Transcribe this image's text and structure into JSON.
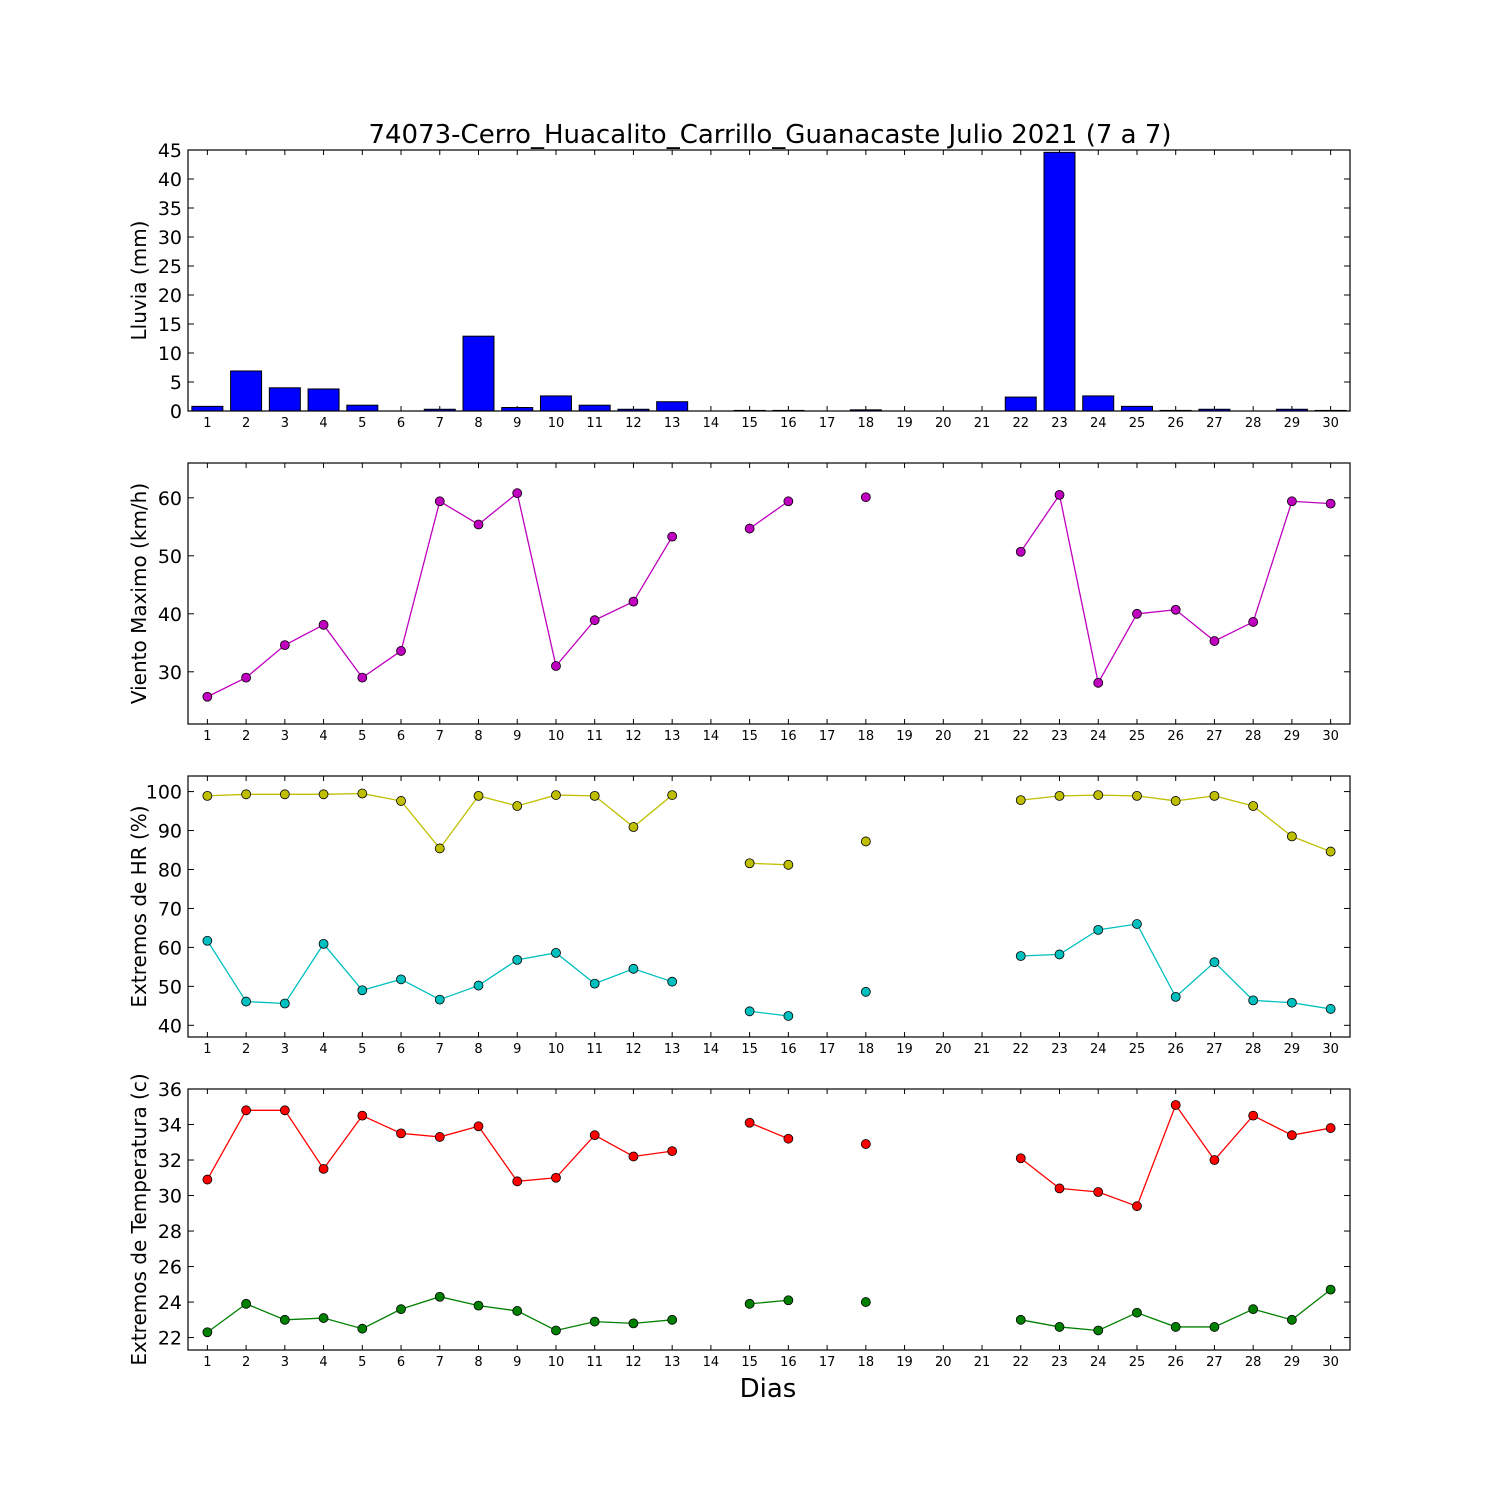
{
  "title": "74073-Cerro_Huacalito_Carrillo_Guanacaste Julio 2021  (7 a 7)",
  "xlabel": "Dias",
  "chart_data": [
    {
      "type": "bar",
      "ylabel": "Lluvia (mm)",
      "ylim": [
        0,
        45
      ],
      "yticks": [
        0,
        5,
        10,
        15,
        20,
        25,
        30,
        35,
        40,
        45
      ],
      "categories": [
        "1",
        "2",
        "3",
        "4",
        "5",
        "6",
        "7",
        "8",
        "9",
        "10",
        "11",
        "12",
        "13",
        "14",
        "15",
        "16",
        "17",
        "18",
        "19",
        "20",
        "21",
        "22",
        "23",
        "24",
        "25",
        "26",
        "27",
        "28",
        "29",
        "30"
      ],
      "color": "#0000ff",
      "values": [
        0.8,
        6.9,
        4.0,
        3.8,
        1.0,
        0.0,
        0.3,
        12.9,
        0.6,
        2.6,
        1.0,
        0.3,
        1.6,
        0.0,
        0.1,
        0.1,
        0.0,
        0.2,
        0.0,
        0.0,
        0.0,
        2.4,
        44.6,
        2.6,
        0.8,
        0.1,
        0.3,
        0.0,
        0.3,
        0.1
      ]
    },
    {
      "type": "line",
      "ylabel": "Viento Maximo (km/h)",
      "ylim": [
        21,
        66
      ],
      "yticks": [
        30,
        40,
        50,
        60
      ],
      "categories": [
        "1",
        "2",
        "3",
        "4",
        "5",
        "6",
        "7",
        "8",
        "9",
        "10",
        "11",
        "12",
        "13",
        "14",
        "15",
        "16",
        "17",
        "18",
        "19",
        "20",
        "21",
        "22",
        "23",
        "24",
        "25",
        "26",
        "27",
        "28",
        "29",
        "30"
      ],
      "series": [
        {
          "color": "#bf00bf",
          "values": [
            25.7,
            29.0,
            34.6,
            38.1,
            29.0,
            33.6,
            59.4,
            55.4,
            60.8,
            31.0,
            38.9,
            42.1,
            53.3,
            null,
            54.7,
            59.4,
            null,
            60.1,
            null,
            null,
            null,
            50.7,
            60.5,
            28.1,
            40.0,
            40.7,
            35.3,
            38.6,
            59.4,
            59.0
          ]
        }
      ]
    },
    {
      "type": "line",
      "ylabel": "Extremos de HR (%)",
      "ylim": [
        37,
        104
      ],
      "yticks": [
        40,
        50,
        60,
        70,
        80,
        90,
        100
      ],
      "categories": [
        "1",
        "2",
        "3",
        "4",
        "5",
        "6",
        "7",
        "8",
        "9",
        "10",
        "11",
        "12",
        "13",
        "14",
        "15",
        "16",
        "17",
        "18",
        "19",
        "20",
        "21",
        "22",
        "23",
        "24",
        "25",
        "26",
        "27",
        "28",
        "29",
        "30"
      ],
      "series": [
        {
          "color": "#bfbf00",
          "values": [
            98.9,
            99.3,
            99.3,
            99.3,
            99.5,
            97.6,
            85.4,
            98.9,
            96.3,
            99.1,
            98.9,
            90.9,
            99.1,
            null,
            81.6,
            81.2,
            null,
            87.2,
            null,
            null,
            null,
            97.8,
            98.9,
            99.1,
            98.9,
            97.6,
            98.9,
            96.3,
            88.5,
            84.6
          ]
        },
        {
          "color": "#00bfbf",
          "values": [
            61.7,
            46.1,
            45.6,
            60.9,
            49.0,
            51.8,
            46.6,
            50.2,
            56.8,
            58.6,
            50.7,
            54.5,
            51.2,
            null,
            43.6,
            42.4,
            null,
            48.6,
            null,
            null,
            null,
            57.8,
            58.2,
            64.5,
            66.0,
            47.3,
            56.2,
            46.4,
            45.8,
            44.2
          ]
        }
      ]
    },
    {
      "type": "line",
      "ylabel": "Extremos de Temperatura (c)",
      "ylim": [
        21.3,
        36
      ],
      "yticks": [
        22,
        24,
        26,
        28,
        30,
        32,
        34,
        36
      ],
      "categories": [
        "1",
        "2",
        "3",
        "4",
        "5",
        "6",
        "7",
        "8",
        "9",
        "10",
        "11",
        "12",
        "13",
        "14",
        "15",
        "16",
        "17",
        "18",
        "19",
        "20",
        "21",
        "22",
        "23",
        "24",
        "25",
        "26",
        "27",
        "28",
        "29",
        "30"
      ],
      "series": [
        {
          "color": "#ff0000",
          "values": [
            30.9,
            34.8,
            34.8,
            31.5,
            34.5,
            33.5,
            33.3,
            33.9,
            30.8,
            31.0,
            33.4,
            32.2,
            32.5,
            null,
            34.1,
            33.2,
            null,
            32.9,
            null,
            null,
            null,
            32.1,
            30.4,
            30.2,
            29.4,
            35.1,
            32.0,
            34.5,
            33.4,
            33.8
          ]
        },
        {
          "color": "#008000",
          "values": [
            22.3,
            23.9,
            23.0,
            23.1,
            22.5,
            23.6,
            24.3,
            23.8,
            23.5,
            22.4,
            22.9,
            22.8,
            23.0,
            null,
            23.9,
            24.1,
            null,
            24.0,
            null,
            null,
            null,
            23.0,
            22.6,
            22.4,
            23.4,
            22.6,
            22.6,
            23.6,
            23.0,
            24.7
          ]
        }
      ]
    }
  ]
}
